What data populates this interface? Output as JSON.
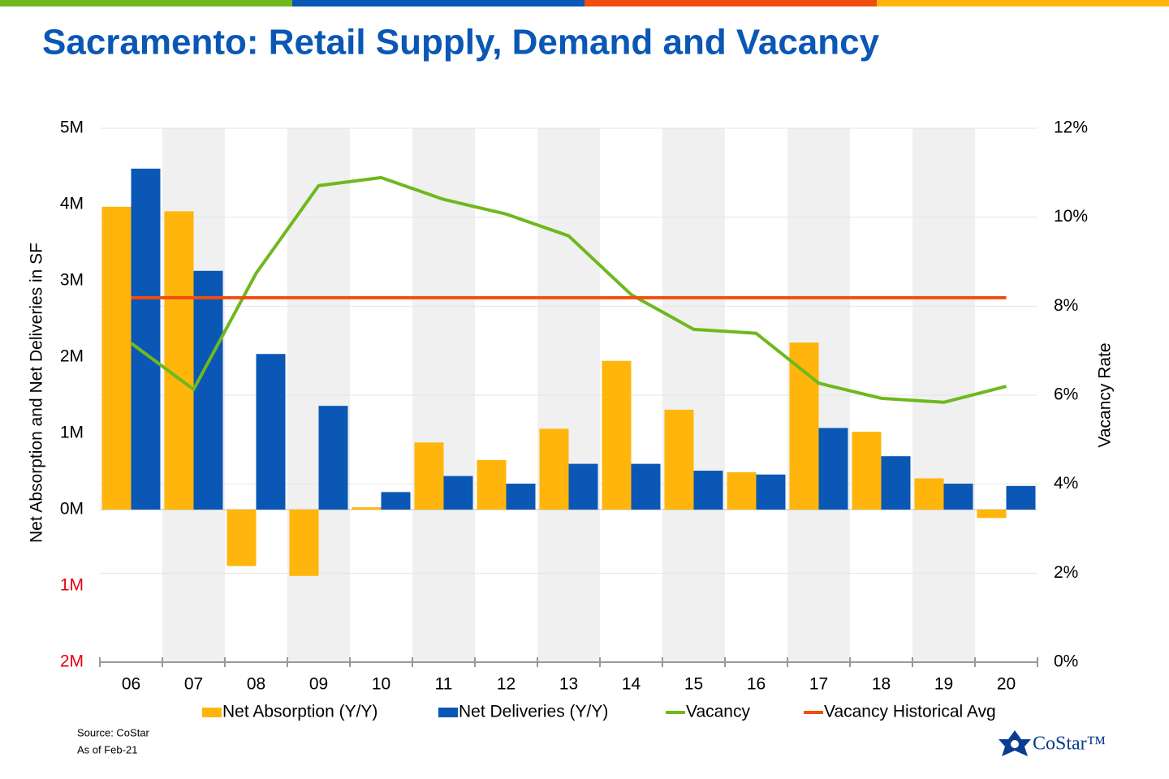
{
  "chart_data": {
    "type": "bar",
    "title": "Sacramento: Retail Supply, Demand and Vacancy",
    "y_label": "Net Absorption and Net Deliveries in SF",
    "y2_label": "Vacancy Rate",
    "categories": [
      "06",
      "07",
      "08",
      "09",
      "10",
      "11",
      "12",
      "13",
      "14",
      "15",
      "16",
      "17",
      "18",
      "19",
      "20"
    ],
    "series": [
      {
        "name": "Net Absorption (Y/Y)",
        "type": "bar",
        "color": "#ffb50b",
        "values": [
          3.97,
          3.91,
          -0.74,
          -0.87,
          0.03,
          0.88,
          0.65,
          1.06,
          1.95,
          1.31,
          0.49,
          2.19,
          1.02,
          0.41,
          -0.11
        ]
      },
      {
        "name": "Net Deliveries (Y/Y)",
        "type": "bar",
        "color": "#0a57b5",
        "values": [
          4.47,
          3.13,
          2.04,
          1.36,
          0.23,
          0.44,
          0.34,
          0.6,
          0.6,
          0.51,
          0.46,
          1.07,
          0.7,
          0.34,
          0.31
        ]
      },
      {
        "name": "Vacancy",
        "type": "line",
        "axis": "y2",
        "color": "#6fb81e",
        "values": [
          7.17,
          6.13,
          8.74,
          10.71,
          10.89,
          10.4,
          10.07,
          9.58,
          8.26,
          7.48,
          7.39,
          6.27,
          5.93,
          5.84,
          6.2
        ]
      },
      {
        "name": "Vacancy Historical Avg",
        "type": "line",
        "axis": "y2",
        "color": "#f04e0e",
        "values": [
          8.19,
          8.19,
          8.19,
          8.19,
          8.19,
          8.19,
          8.19,
          8.19,
          8.19,
          8.19,
          8.19,
          8.19,
          8.19,
          8.19,
          8.19
        ]
      }
    ],
    "ylim": [
      -2,
      5
    ],
    "yticks": [
      {
        "value": 5,
        "label": "5M"
      },
      {
        "value": 4,
        "label": "4M"
      },
      {
        "value": 3,
        "label": "3M"
      },
      {
        "value": 2,
        "label": "2M"
      },
      {
        "value": 1,
        "label": "1M"
      },
      {
        "value": 0,
        "label": "0M"
      },
      {
        "value": -1,
        "label": "1M"
      },
      {
        "value": -2,
        "label": "2M"
      }
    ],
    "negative_tick_color": "#e3000f",
    "y2lim": [
      0,
      12
    ],
    "y2ticks": [
      {
        "value": 12,
        "label": "12%"
      },
      {
        "value": 10,
        "label": "10%"
      },
      {
        "value": 8,
        "label": "8%"
      },
      {
        "value": 6,
        "label": "6%"
      },
      {
        "value": 4,
        "label": "4%"
      },
      {
        "value": 2,
        "label": "2%"
      },
      {
        "value": 0,
        "label": "0%"
      }
    ],
    "grid": true,
    "band_color": "#f0f0f0",
    "legend": "bottom"
  },
  "footer": {
    "source": "Source: CoStar",
    "as_of": "As of Feb-21",
    "logo": "CoStar™"
  }
}
